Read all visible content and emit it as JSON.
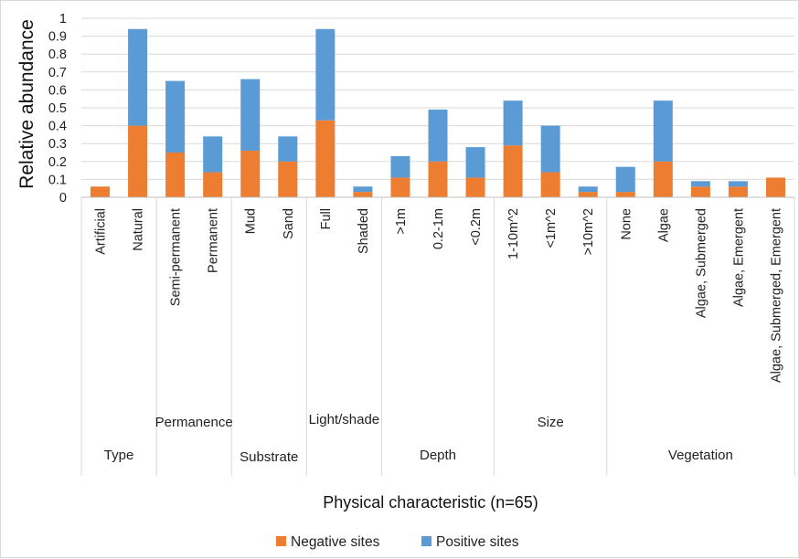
{
  "chart_data": {
    "type": "bar",
    "stacked": true,
    "title": "",
    "xlabel": "Physical characteristic (n=65)",
    "ylabel": "Relative abundance",
    "ylim": [
      0,
      1
    ],
    "yticks": [
      "0",
      "0.1",
      "0.2",
      "0.3",
      "0.4",
      "0.5",
      "0.6",
      "0.7",
      "0.8",
      "0.9",
      "1"
    ],
    "grid": true,
    "legend_position": "bottom",
    "categories": [
      "Artificial",
      "Natural",
      "Semi-permanent",
      "Permanent",
      "Mud",
      "Sand",
      "Full",
      "Shaded",
      ">1m",
      "0.2-1m",
      "<0.2m",
      "1-10m^2",
      "<1m^2",
      ">10m^2",
      "None",
      "Algae",
      "Algae, Submerged",
      "Algae, Emergent",
      "Algae, Submerged, Emergent"
    ],
    "groups": [
      {
        "label": "Type",
        "count": 2
      },
      {
        "label": "Permanence",
        "count": 2
      },
      {
        "label": "Substrate",
        "count": 2
      },
      {
        "label": "Light/shade",
        "count": 2
      },
      {
        "label": "Depth",
        "count": 3
      },
      {
        "label": "Size",
        "count": 3
      },
      {
        "label": "Vegetation",
        "count": 5
      }
    ],
    "series": [
      {
        "name": "Negative sites",
        "color": "#ed7d31",
        "values": [
          0.06,
          0.4,
          0.25,
          0.14,
          0.26,
          0.2,
          0.43,
          0.03,
          0.11,
          0.2,
          0.11,
          0.29,
          0.14,
          0.03,
          0.03,
          0.2,
          0.06,
          0.06,
          0.11
        ]
      },
      {
        "name": "Positive sites",
        "color": "#5b9bd5",
        "values": [
          0.0,
          0.54,
          0.4,
          0.2,
          0.4,
          0.14,
          0.51,
          0.03,
          0.12,
          0.29,
          0.17,
          0.25,
          0.26,
          0.03,
          0.14,
          0.34,
          0.03,
          0.03,
          0.0
        ]
      }
    ]
  }
}
